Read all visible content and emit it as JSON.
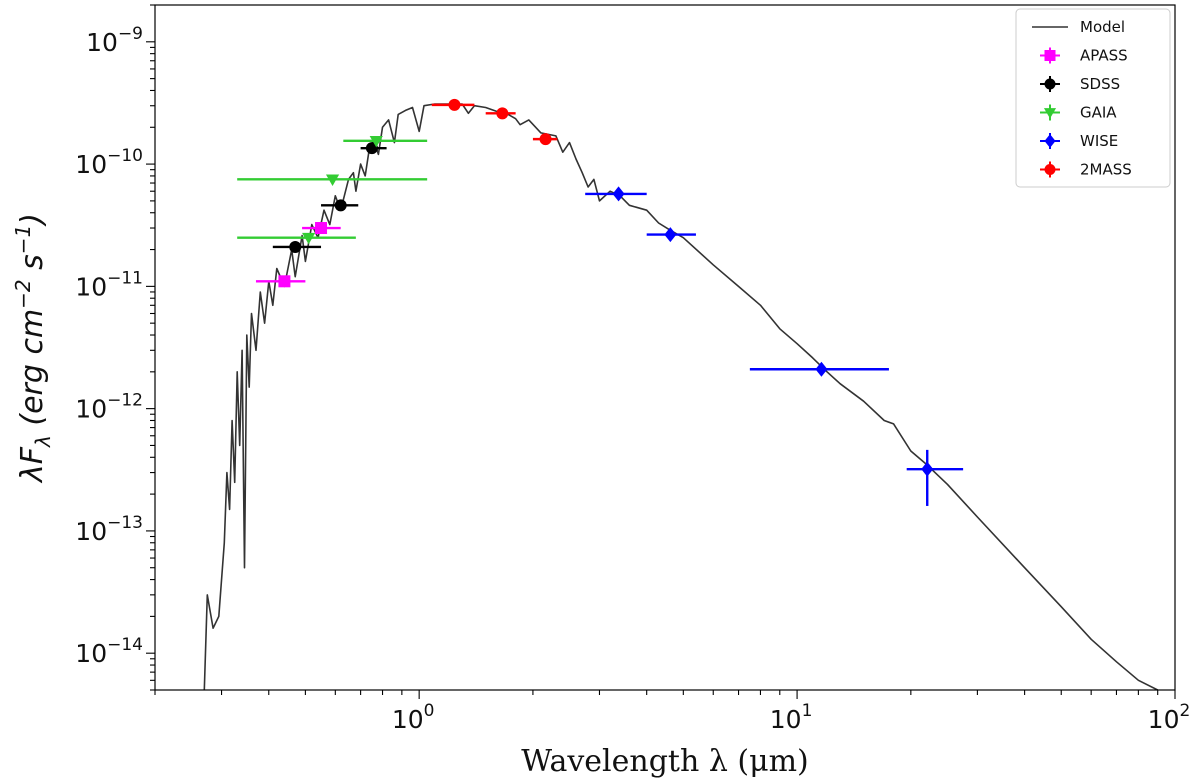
{
  "chart_data": {
    "type": "scatter",
    "title": "",
    "xlabel": "Wavelength λ (μm)",
    "ylabel": "λF_λ (erg cm^-2 s^-1)",
    "xscale": "log",
    "yscale": "log",
    "xlim": [
      0.2,
      100
    ],
    "ylim": [
      5e-15,
      2e-09
    ],
    "xticks": [
      {
        "value": 1,
        "base": "10",
        "exp": "0"
      },
      {
        "value": 10,
        "base": "10",
        "exp": "1"
      },
      {
        "value": 100,
        "base": "10",
        "exp": "2"
      }
    ],
    "yticks": [
      {
        "value": 1e-14,
        "base": "10",
        "exp": "−14"
      },
      {
        "value": 1e-13,
        "base": "10",
        "exp": "−13"
      },
      {
        "value": 1e-12,
        "base": "10",
        "exp": "−12"
      },
      {
        "value": 1e-11,
        "base": "10",
        "exp": "−11"
      },
      {
        "value": 1e-10,
        "base": "10",
        "exp": "−10"
      },
      {
        "value": 1e-09,
        "base": "10",
        "exp": "−9"
      }
    ],
    "grid": false,
    "legend": "top-right",
    "model": {
      "name": "Model",
      "color": "#333333",
      "points": [
        [
          0.27,
          5e-15
        ],
        [
          0.275,
          3e-14
        ],
        [
          0.285,
          1.6e-14
        ],
        [
          0.295,
          2e-14
        ],
        [
          0.305,
          8e-14
        ],
        [
          0.31,
          3e-13
        ],
        [
          0.315,
          1.5e-13
        ],
        [
          0.32,
          8e-13
        ],
        [
          0.325,
          2.5e-13
        ],
        [
          0.33,
          2e-12
        ],
        [
          0.335,
          5e-13
        ],
        [
          0.34,
          3e-12
        ],
        [
          0.345,
          5e-14
        ],
        [
          0.35,
          4e-12
        ],
        [
          0.355,
          1.5e-12
        ],
        [
          0.36,
          6e-12
        ],
        [
          0.37,
          3e-12
        ],
        [
          0.38,
          9e-12
        ],
        [
          0.39,
          5e-12
        ],
        [
          0.4,
          1.1e-11
        ],
        [
          0.41,
          7e-12
        ],
        [
          0.42,
          1.4e-11
        ],
        [
          0.44,
          1e-11
        ],
        [
          0.46,
          2e-11
        ],
        [
          0.47,
          1.2e-11
        ],
        [
          0.49,
          2.6e-11
        ],
        [
          0.5,
          1.6e-11
        ],
        [
          0.52,
          3.2e-11
        ],
        [
          0.54,
          2.5e-11
        ],
        [
          0.56,
          4.2e-11
        ],
        [
          0.58,
          3.2e-11
        ],
        [
          0.6,
          5.5e-11
        ],
        [
          0.62,
          4.2e-11
        ],
        [
          0.65,
          7.5e-11
        ],
        [
          0.67,
          8.5e-11
        ],
        [
          0.68,
          6e-11
        ],
        [
          0.7,
          1e-10
        ],
        [
          0.72,
          8e-11
        ],
        [
          0.74,
          1.4e-10
        ],
        [
          0.76,
          1.55e-10
        ],
        [
          0.78,
          1.2e-10
        ],
        [
          0.8,
          2e-10
        ],
        [
          0.83,
          2.3e-10
        ],
        [
          0.86,
          1.5e-10
        ],
        [
          0.88,
          2.55e-10
        ],
        [
          0.92,
          2.75e-10
        ],
        [
          0.96,
          2.9e-10
        ],
        [
          1.0,
          1.85e-10
        ],
        [
          1.03,
          3e-10
        ],
        [
          1.1,
          3.1e-10
        ],
        [
          1.2,
          3.1e-10
        ],
        [
          1.3,
          3.1e-10
        ],
        [
          1.35,
          2.6e-10
        ],
        [
          1.4,
          3e-10
        ],
        [
          1.5,
          2.9e-10
        ],
        [
          1.6,
          2.7e-10
        ],
        [
          1.7,
          2.6e-10
        ],
        [
          1.8,
          2.35e-10
        ],
        [
          1.85,
          2.1e-10
        ],
        [
          1.95,
          2.3e-10
        ],
        [
          2.1,
          1.8e-10
        ],
        [
          2.3,
          1.7e-10
        ],
        [
          2.4,
          1.25e-10
        ],
        [
          2.5,
          1.5e-10
        ],
        [
          2.6,
          1.1e-10
        ],
        [
          2.7,
          8.5e-11
        ],
        [
          2.8,
          6.5e-11
        ],
        [
          2.9,
          7.5e-11
        ],
        [
          3.0,
          5e-11
        ],
        [
          3.2,
          6e-11
        ],
        [
          3.4,
          5.5e-11
        ],
        [
          3.6,
          4.6e-11
        ],
        [
          4.0,
          4.2e-11
        ],
        [
          4.3,
          3.3e-11
        ],
        [
          4.6,
          2.9e-11
        ],
        [
          5.0,
          2.5e-11
        ],
        [
          6.0,
          1.5e-11
        ],
        [
          7.0,
          1e-11
        ],
        [
          8.0,
          7e-12
        ],
        [
          9.0,
          4.5e-12
        ],
        [
          10.0,
          3.4e-12
        ],
        [
          11.0,
          2.6e-12
        ],
        [
          12.0,
          2e-12
        ],
        [
          13.0,
          1.6e-12
        ],
        [
          15.0,
          1.15e-12
        ],
        [
          17.0,
          8e-13
        ],
        [
          18.0,
          7.5e-13
        ],
        [
          20.0,
          4.5e-13
        ],
        [
          22.0,
          3.5e-13
        ],
        [
          25.0,
          2.4e-13
        ],
        [
          30.0,
          1.3e-13
        ],
        [
          40.0,
          5e-14
        ],
        [
          50.0,
          2.4e-14
        ],
        [
          60.0,
          1.3e-14
        ],
        [
          70.0,
          8.5e-15
        ],
        [
          80.0,
          6e-15
        ],
        [
          90.0,
          5e-15
        ]
      ]
    },
    "series": [
      {
        "name": "APASS",
        "color": "#ff00ff",
        "marker": "square",
        "points": [
          {
            "x": 0.44,
            "y": 1.1e-11,
            "xlo": 0.37,
            "xhi": 0.5
          },
          {
            "x": 0.55,
            "y": 3e-11,
            "xlo": 0.49,
            "xhi": 0.62
          }
        ]
      },
      {
        "name": "SDSS",
        "color": "#000000",
        "marker": "circle",
        "points": [
          {
            "x": 0.47,
            "y": 2.1e-11,
            "xlo": 0.41,
            "xhi": 0.55
          },
          {
            "x": 0.62,
            "y": 4.6e-11,
            "xlo": 0.55,
            "xhi": 0.69
          },
          {
            "x": 0.75,
            "y": 1.35e-10,
            "xlo": 0.7,
            "xhi": 0.82
          }
        ]
      },
      {
        "name": "GAIA",
        "color": "#33cc33",
        "marker": "triangle-down",
        "points": [
          {
            "x": 0.51,
            "y": 2.5e-11,
            "xlo": 0.33,
            "xhi": 0.68
          },
          {
            "x": 0.59,
            "y": 7.5e-11,
            "xlo": 0.33,
            "xhi": 1.05
          },
          {
            "x": 0.77,
            "y": 1.55e-10,
            "xlo": 0.63,
            "xhi": 1.05
          }
        ]
      },
      {
        "name": "WISE",
        "color": "#0000ff",
        "marker": "diamond",
        "points": [
          {
            "x": 3.37,
            "y": 5.7e-11,
            "xlo": 2.75,
            "xhi": 4.0
          },
          {
            "x": 4.62,
            "y": 2.65e-11,
            "xlo": 4.0,
            "xhi": 5.4
          },
          {
            "x": 11.6,
            "y": 2.1e-12,
            "xlo": 7.5,
            "xhi": 17.5
          },
          {
            "x": 22.1,
            "y": 3.2e-13,
            "xlo": 19.5,
            "xhi": 27.5,
            "ylo": 1.6e-13,
            "yhi": 4.6e-13
          }
        ]
      },
      {
        "name": "2MASS",
        "color": "#ff0000",
        "marker": "circle",
        "points": [
          {
            "x": 1.24,
            "y": 3.05e-10,
            "xlo": 1.08,
            "xhi": 1.4
          },
          {
            "x": 1.66,
            "y": 2.6e-10,
            "xlo": 1.5,
            "xhi": 1.8
          },
          {
            "x": 2.16,
            "y": 1.6e-10,
            "xlo": 2.0,
            "xhi": 2.32
          }
        ]
      }
    ]
  }
}
